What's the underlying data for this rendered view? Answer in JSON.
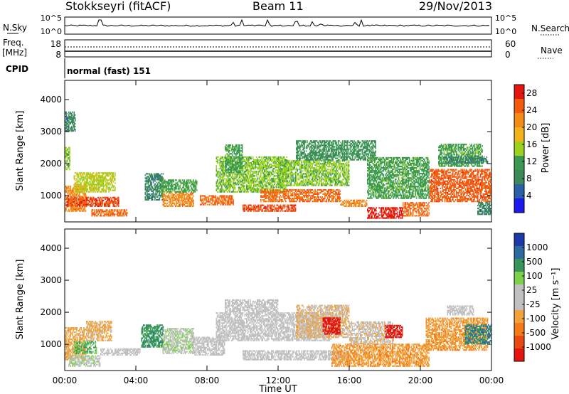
{
  "header": {
    "station": "Stokkseyri (fitACF)",
    "beam": "Beam 11",
    "date": "29/Nov/2013"
  },
  "panels": {
    "nsky": {
      "left_label": "N.Sky",
      "left_ticks": [
        "10^5",
        "10^0"
      ],
      "right_ticks": [
        "10^5",
        "10^0"
      ],
      "right_label": "N.Search"
    },
    "freq": {
      "left_label_top": "Freq.",
      "left_label_unit": "[MHz]",
      "left_ticks": [
        "18",
        "8"
      ],
      "right_ticks": [
        "60",
        "0"
      ],
      "right_label": "Nave"
    },
    "cpid": {
      "label": "CPID",
      "value": "normal (fast) 151"
    }
  },
  "colors": {
    "power": [
      "#1b18f0",
      "#2c5fa8",
      "#3c8a5a",
      "#3a9b50",
      "#9cd11e",
      "#f2b21c",
      "#f48a17",
      "#f25a10",
      "#e5140e"
    ],
    "velocity": [
      "#1b3aa8",
      "#2e6aa0",
      "#36955a",
      "#7bd24a",
      "#c0c0c0",
      "#c0c0c0",
      "#f2a23a",
      "#f47a18",
      "#e84a12",
      "#e5140e"
    ]
  },
  "chart_data": [
    {
      "type": "heatmap",
      "title": "",
      "xlabel": "",
      "ylabel": "Slant Range [km]",
      "xlim": [
        "00:00",
        "24:00"
      ],
      "ylim": [
        180,
        4600
      ],
      "x_ticks": [
        "00:00",
        "04:00",
        "08:00",
        "12:00",
        "16:00",
        "20:00",
        "00:00"
      ],
      "y_ticks": [
        "1000",
        "2000",
        "3000",
        "4000"
      ],
      "colorbar": {
        "label": "Power [dB]",
        "ticks": [
          "4",
          "8",
          "12",
          "16",
          "20",
          "24",
          "28"
        ],
        "range": [
          0,
          30
        ]
      },
      "echo_regions": [
        {
          "t": [
            0.0,
            0.3
          ],
          "r": [
            1800,
            2500
          ],
          "value": 14
        },
        {
          "t": [
            0.0,
            0.6
          ],
          "r": [
            3000,
            3600
          ],
          "value": 8
        },
        {
          "t": [
            0.0,
            1.2
          ],
          "r": [
            500,
            1300
          ],
          "value": 22
        },
        {
          "t": [
            0.1,
            3.0
          ],
          "r": [
            650,
            950
          ],
          "value": 26
        },
        {
          "t": [
            0.5,
            2.8
          ],
          "r": [
            1100,
            1700
          ],
          "value": 16
        },
        {
          "t": [
            1.5,
            3.5
          ],
          "r": [
            350,
            550
          ],
          "value": 24
        },
        {
          "t": [
            4.5,
            5.5
          ],
          "r": [
            850,
            1700
          ],
          "value": 8
        },
        {
          "t": [
            5.5,
            7.2
          ],
          "r": [
            650,
            1100
          ],
          "value": 22
        },
        {
          "t": [
            5.3,
            7.4
          ],
          "r": [
            1100,
            1500
          ],
          "value": 12
        },
        {
          "t": [
            7.6,
            9.5
          ],
          "r": [
            700,
            1000
          ],
          "value": 24
        },
        {
          "t": [
            8.5,
            12.5
          ],
          "r": [
            1100,
            2200
          ],
          "value": 14
        },
        {
          "t": [
            9.0,
            10.0
          ],
          "r": [
            1700,
            2600
          ],
          "value": 12
        },
        {
          "t": [
            10.0,
            13.0
          ],
          "r": [
            500,
            700
          ],
          "value": 26
        },
        {
          "t": [
            11.0,
            15.5
          ],
          "r": [
            800,
            1200
          ],
          "value": 24
        },
        {
          "t": [
            12.0,
            16.0
          ],
          "r": [
            1300,
            2100
          ],
          "value": 14
        },
        {
          "t": [
            13.0,
            17.5
          ],
          "r": [
            2100,
            2700
          ],
          "value": 10
        },
        {
          "t": [
            15.5,
            17.0
          ],
          "r": [
            650,
            850
          ],
          "value": 22
        },
        {
          "t": [
            17.0,
            19.0
          ],
          "r": [
            280,
            600
          ],
          "value": 28
        },
        {
          "t": [
            19.0,
            20.5
          ],
          "r": [
            350,
            800
          ],
          "value": 24
        },
        {
          "t": [
            17.0,
            20.5
          ],
          "r": [
            900,
            2200
          ],
          "value": 12
        },
        {
          "t": [
            20.5,
            24.0
          ],
          "r": [
            800,
            1800
          ],
          "value": 25
        },
        {
          "t": [
            21.0,
            23.5
          ],
          "r": [
            1900,
            2600
          ],
          "value": 12
        },
        {
          "t": [
            21.3,
            23.8
          ],
          "r": [
            2000,
            2200
          ],
          "value": 8
        },
        {
          "t": [
            23.2,
            24.0
          ],
          "r": [
            400,
            800
          ],
          "value": 8
        }
      ]
    },
    {
      "type": "heatmap",
      "title": "",
      "xlabel": "Time UT",
      "ylabel": "Slant Range [km]",
      "xlim": [
        "00:00",
        "24:00"
      ],
      "ylim": [
        180,
        4600
      ],
      "x_ticks": [
        "00:00",
        "04:00",
        "08:00",
        "12:00",
        "16:00",
        "20:00",
        "00:00"
      ],
      "y_ticks": [
        "1000",
        "2000",
        "3000",
        "4000"
      ],
      "colorbar": {
        "label": "Velocity [m s⁻¹]",
        "ticks": [
          "1000",
          "500",
          "100",
          "25",
          "-25",
          "-100",
          "-500",
          "-1000"
        ],
        "range": [
          -1000,
          1000
        ]
      },
      "echo_regions": [
        {
          "t": [
            0.0,
            1.2
          ],
          "r": [
            500,
            1500
          ],
          "value": -300
        },
        {
          "t": [
            0.2,
            2.0
          ],
          "r": [
            300,
            650
          ],
          "value": 150
        },
        {
          "t": [
            0.5,
            1.8
          ],
          "r": [
            700,
            1100
          ],
          "value": 400
        },
        {
          "t": [
            1.2,
            2.6
          ],
          "r": [
            1100,
            1700
          ],
          "value": -250
        },
        {
          "t": [
            2.0,
            4.2
          ],
          "r": [
            650,
            850
          ],
          "value": 0
        },
        {
          "t": [
            4.3,
            5.5
          ],
          "r": [
            900,
            1600
          ],
          "value": 500
        },
        {
          "t": [
            5.5,
            7.2
          ],
          "r": [
            700,
            1500
          ],
          "value": 150
        },
        {
          "t": [
            7.2,
            9.0
          ],
          "r": [
            650,
            1200
          ],
          "value": 60
        },
        {
          "t": [
            8.5,
            15.0
          ],
          "r": [
            1100,
            2000
          ],
          "value": 0
        },
        {
          "t": [
            9.0,
            12.0
          ],
          "r": [
            2000,
            2400
          ],
          "value": 0
        },
        {
          "t": [
            10.0,
            16.0
          ],
          "r": [
            500,
            800
          ],
          "value": 80
        },
        {
          "t": [
            13.0,
            16.0
          ],
          "r": [
            1200,
            2200
          ],
          "value": -200
        },
        {
          "t": [
            14.5,
            15.5
          ],
          "r": [
            1300,
            1800
          ],
          "value": -1000
        },
        {
          "t": [
            15.0,
            20.5
          ],
          "r": [
            300,
            1000
          ],
          "value": -350
        },
        {
          "t": [
            16.0,
            18.5
          ],
          "r": [
            1000,
            1700
          ],
          "value": -150
        },
        {
          "t": [
            18.0,
            19.0
          ],
          "r": [
            1200,
            1600
          ],
          "value": -900
        },
        {
          "t": [
            20.3,
            23.8
          ],
          "r": [
            800,
            1800
          ],
          "value": -350
        },
        {
          "t": [
            21.5,
            23.0
          ],
          "r": [
            1900,
            2200
          ],
          "value": 60
        },
        {
          "t": [
            22.5,
            24.0
          ],
          "r": [
            1000,
            1600
          ],
          "value": 600
        }
      ]
    }
  ]
}
